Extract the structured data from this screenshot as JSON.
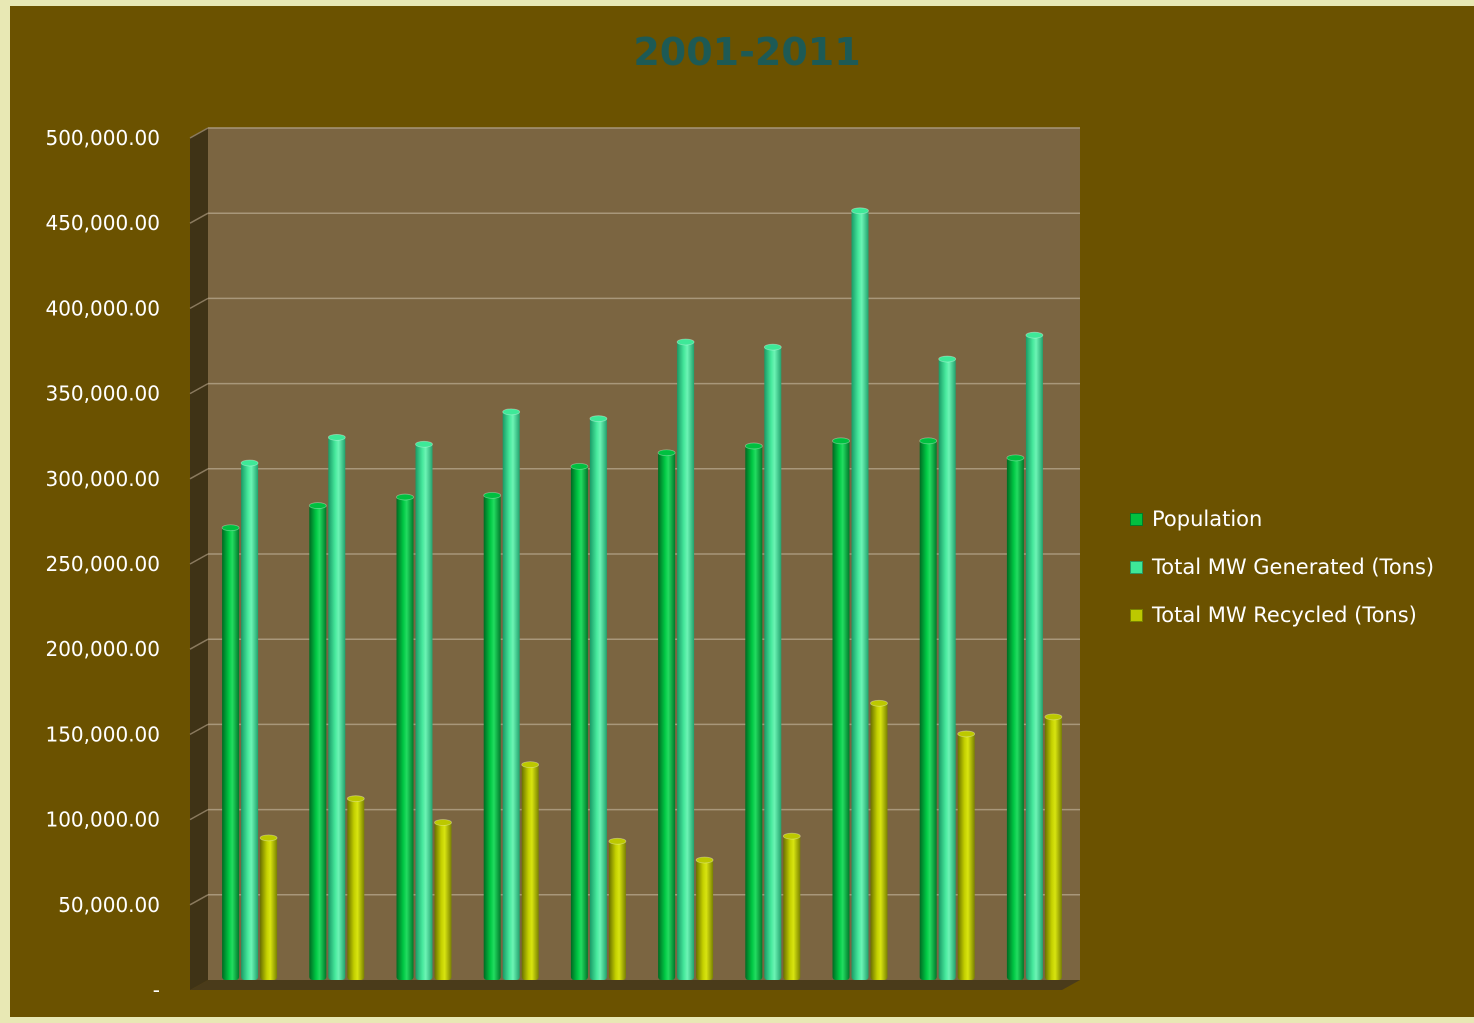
{
  "chart_data": {
    "type": "bar",
    "title": "2001-2011",
    "categories": [
      "",
      "",
      "",
      "",
      "",
      "",
      "",
      "",
      "",
      ""
    ],
    "ylim": [
      0,
      500000
    ],
    "yticks": [
      0,
      50000,
      100000,
      150000,
      200000,
      250000,
      300000,
      350000,
      400000,
      450000,
      500000
    ],
    "ytick_labels": [
      "-",
      "50,000.00",
      "100,000.00",
      "150,000.00",
      "200,000.00",
      "250,000.00",
      "300,000.00",
      "350,000.00",
      "400,000.00",
      "450,000.00",
      "500,000.00"
    ],
    "grid": true,
    "legend_position": "right",
    "series": [
      {
        "name": "Population",
        "color": "#00c040",
        "values": [
          266000,
          279000,
          284000,
          285000,
          302000,
          310000,
          314000,
          317000,
          317000,
          307000
        ]
      },
      {
        "name": "Total MW Generated (Tons)",
        "color": "#3ee898",
        "values": [
          304000,
          319000,
          315000,
          334000,
          330000,
          375000,
          372000,
          452000,
          365000,
          379000
        ]
      },
      {
        "name": "Total MW Recycled (Tons)",
        "color": "#bcc800",
        "values": [
          84000,
          107000,
          93000,
          127000,
          82000,
          71000,
          85000,
          163000,
          145000,
          155000
        ]
      }
    ]
  }
}
